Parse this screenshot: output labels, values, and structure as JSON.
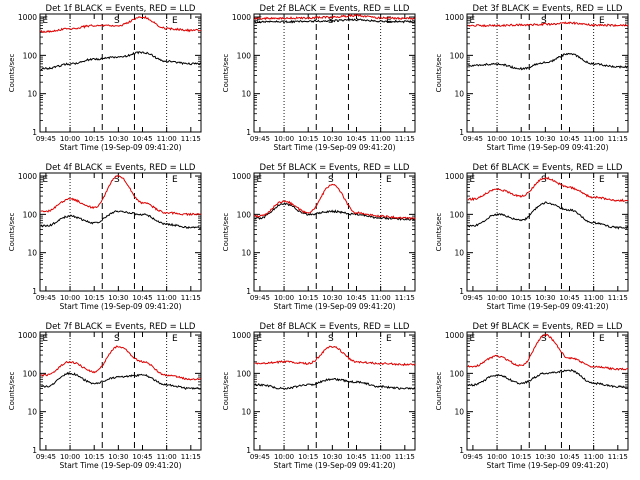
{
  "figure": {
    "x_tick_labels": [
      "09:45",
      "10:00",
      "10:15",
      "10:30",
      "10:45",
      "11:00",
      "11:15"
    ],
    "x_label": "Start Time (19-Sep-09 09:41:20)",
    "y_label": "Counts/sec",
    "y_tick_labels": [
      "1",
      "10",
      "100",
      "1000"
    ],
    "marker_labels": [
      "E",
      "S",
      "E"
    ],
    "colors": {
      "events": "#000000",
      "lld": "#dd0000"
    }
  },
  "chart_data": [
    {
      "type": "line",
      "title": "Det 1f BLACK = Events, RED = LLD",
      "xlabel": "Start Time (19-Sep-09 09:41:20)",
      "ylabel": "Counts/sec",
      "x": [
        "09:45",
        "10:00",
        "10:15",
        "10:30",
        "10:45",
        "11:00",
        "11:15"
      ],
      "ylim": [
        1,
        1200
      ],
      "yscale": "log",
      "series": [
        {
          "name": "Events",
          "values": [
            45,
            60,
            80,
            90,
            120,
            70,
            60
          ]
        },
        {
          "name": "LLD",
          "values": [
            420,
            500,
            600,
            600,
            1000,
            500,
            450
          ]
        }
      ]
    },
    {
      "type": "line",
      "title": "Det 2f BLACK = Events, RED = LLD",
      "xlabel": "Start Time (19-Sep-09 09:41:20)",
      "ylabel": "Counts/sec",
      "x": [
        "09:45",
        "10:00",
        "10:15",
        "10:30",
        "10:45",
        "11:00",
        "11:15"
      ],
      "ylim": [
        1,
        1200
      ],
      "yscale": "log",
      "series": [
        {
          "name": "Events",
          "values": [
            750,
            750,
            780,
            800,
            850,
            780,
            760
          ]
        },
        {
          "name": "LLD",
          "values": [
            920,
            930,
            950,
            1000,
            1100,
            950,
            920
          ]
        }
      ]
    },
    {
      "type": "line",
      "title": "Det 3f BLACK = Events, RED = LLD",
      "xlabel": "Start Time (19-Sep-09 09:41:20)",
      "ylabel": "Counts/sec",
      "x": [
        "09:45",
        "10:00",
        "10:15",
        "10:30",
        "10:45",
        "11:00",
        "11:15"
      ],
      "ylim": [
        1,
        1200
      ],
      "yscale": "log",
      "series": [
        {
          "name": "Events",
          "values": [
            55,
            60,
            45,
            65,
            110,
            60,
            50
          ]
        },
        {
          "name": "LLD",
          "values": [
            600,
            600,
            620,
            650,
            700,
            620,
            610
          ]
        }
      ]
    },
    {
      "type": "line",
      "title": "Det 4f BLACK = Events, RED = LLD",
      "xlabel": "Start Time (19-Sep-09 09:41:20)",
      "ylabel": "Counts/sec",
      "x": [
        "09:45",
        "10:00",
        "10:15",
        "10:30",
        "10:45",
        "11:00",
        "11:15"
      ],
      "ylim": [
        1,
        1200
      ],
      "yscale": "log",
      "series": [
        {
          "name": "Events",
          "values": [
            50,
            90,
            60,
            120,
            100,
            55,
            45
          ]
        },
        {
          "name": "LLD",
          "values": [
            120,
            250,
            150,
            1000,
            200,
            110,
            100
          ]
        }
      ]
    },
    {
      "type": "line",
      "title": "Det 5f BLACK = Events, RED = LLD",
      "xlabel": "Start Time (19-Sep-09 09:41:20)",
      "ylabel": "Counts/sec",
      "x": [
        "09:45",
        "10:00",
        "10:15",
        "10:30",
        "10:45",
        "11:00",
        "11:15"
      ],
      "ylim": [
        1,
        1200
      ],
      "yscale": "log",
      "series": [
        {
          "name": "Events",
          "values": [
            80,
            190,
            100,
            120,
            100,
            80,
            75
          ]
        },
        {
          "name": "LLD",
          "values": [
            90,
            220,
            110,
            600,
            110,
            90,
            80
          ]
        }
      ]
    },
    {
      "type": "line",
      "title": "Det 6f BLACK = Events, RED = LLD",
      "xlabel": "Start Time (19-Sep-09 09:41:20)",
      "ylabel": "Counts/sec",
      "x": [
        "09:45",
        "10:00",
        "10:15",
        "10:30",
        "10:45",
        "11:00",
        "11:15"
      ],
      "ylim": [
        1,
        1200
      ],
      "yscale": "log",
      "series": [
        {
          "name": "Events",
          "values": [
            50,
            100,
            70,
            200,
            130,
            60,
            45
          ]
        },
        {
          "name": "LLD",
          "values": [
            250,
            450,
            300,
            900,
            500,
            280,
            230
          ]
        }
      ]
    },
    {
      "type": "line",
      "title": "Det 7f BLACK = Events, RED = LLD",
      "xlabel": "Start Time (19-Sep-09 09:41:20)",
      "ylabel": "Counts/sec",
      "x": [
        "09:45",
        "10:00",
        "10:15",
        "10:30",
        "10:45",
        "11:00",
        "11:15"
      ],
      "ylim": [
        1,
        1200
      ],
      "yscale": "log",
      "series": [
        {
          "name": "Events",
          "values": [
            45,
            100,
            55,
            80,
            90,
            50,
            40
          ]
        },
        {
          "name": "LLD",
          "values": [
            90,
            200,
            110,
            500,
            200,
            90,
            70
          ]
        }
      ]
    },
    {
      "type": "line",
      "title": "Det 8f BLACK = Events, RED = LLD",
      "xlabel": "Start Time (19-Sep-09 09:41:20)",
      "ylabel": "Counts/sec",
      "x": [
        "09:45",
        "10:00",
        "10:15",
        "10:30",
        "10:45",
        "11:00",
        "11:15"
      ],
      "ylim": [
        1,
        1200
      ],
      "yscale": "log",
      "series": [
        {
          "name": "Events",
          "values": [
            50,
            40,
            50,
            70,
            60,
            45,
            40
          ]
        },
        {
          "name": "LLD",
          "values": [
            180,
            200,
            180,
            500,
            200,
            180,
            170
          ]
        }
      ]
    },
    {
      "type": "line",
      "title": "Det 9f BLACK = Events, RED = LLD",
      "xlabel": "Start Time (19-Sep-09 09:41:20)",
      "ylabel": "Counts/sec",
      "x": [
        "09:45",
        "10:00",
        "10:15",
        "10:30",
        "10:45",
        "11:00",
        "11:15"
      ],
      "ylim": [
        1,
        1200
      ],
      "yscale": "log",
      "series": [
        {
          "name": "Events",
          "values": [
            50,
            90,
            55,
            100,
            120,
            55,
            45
          ]
        },
        {
          "name": "LLD",
          "values": [
            150,
            280,
            160,
            1000,
            250,
            150,
            130
          ]
        }
      ]
    }
  ]
}
